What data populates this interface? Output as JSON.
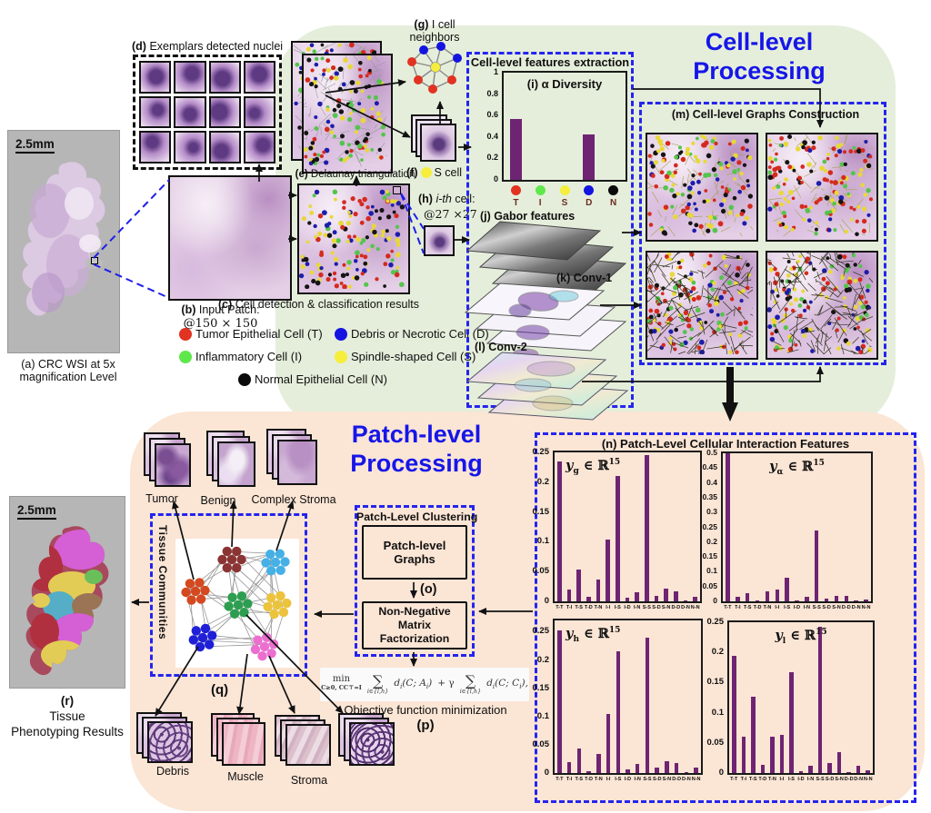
{
  "colors": {
    "accent_blue": "#1616e8",
    "dashed_blue": "#2424ee",
    "bar_purple": "#6e2472",
    "green_bg": "#e5eedb",
    "peach_bg": "#fbe5d5",
    "gray_panel": "#b6b6b6"
  },
  "cell_level": {
    "title_line1": "Cell-level",
    "title_line2": "Processing",
    "panel_a": {
      "scale": "2.5mm",
      "caption_line1": "(a) CRC WSI at 5x",
      "caption_line2": "magnification Level"
    },
    "panel_d": {
      "tag": "(d)",
      "label": "Exemplars detected nuclei"
    },
    "panel_b": {
      "tag": "(b)",
      "label": "Input Patch:",
      "size": "@150 × 150"
    },
    "panel_c": {
      "tag": "(c)",
      "label": "Cell detection & classification results"
    },
    "panel_e": {
      "tag": "(e)",
      "label": "Delaunay triangulation"
    },
    "panel_f": {
      "tag": "(f)",
      "label": "S cell"
    },
    "panel_g": {
      "tag": "(g)",
      "line1": "I cell",
      "line2": "neighbors"
    },
    "panel_h": {
      "tag": "(h)",
      "word_italic": "i-th",
      "word": "cell:",
      "size": "@27 ×27"
    },
    "legend": [
      {
        "label": "Tumor Epithelial Cell (T)",
        "color": "#e23222"
      },
      {
        "label": "Inflammatory Cell (I)",
        "color": "#5fe84c"
      },
      {
        "label": "Normal Epithelial Cell (N)",
        "color": "#0a0a0a"
      },
      {
        "label": "Debris or Necrotic Cell (D)",
        "color": "#1414e0"
      },
      {
        "label": "Spindle-shaped Cell (S)",
        "color": "#f6ee3c"
      }
    ],
    "features_box": {
      "title": "Cell-level features extraction"
    },
    "panel_j": {
      "tag": "(j)",
      "label": "Gabor features"
    },
    "panel_k": {
      "tag": "(k)",
      "label": "Conv-1"
    },
    "panel_l": {
      "tag": "(l)",
      "label": "Conv-2"
    },
    "panel_m": {
      "tag": "(m)",
      "label": "Cell-level Graphs Construction"
    }
  },
  "patch_level": {
    "title_line1": "Patch-level",
    "title_line2": "Processing",
    "panel_n": {
      "title": "(n) Patch-Level Cellular Interaction Features"
    },
    "clustering": {
      "title": "Patch-Level Clustering",
      "box1": "Patch-level Graphs",
      "o_tag": "(o)",
      "box2_line1": "Non-Negative Matrix",
      "box2_line2": "Factorization"
    },
    "panel_p": {
      "caption": "Objective function minimization",
      "tag": "(p)",
      "formula": {
        "min": "min",
        "constraint": "C≥0, CC⊤=I",
        "sum": "∑",
        "sum_sub": "i∈{l,h}",
        "term_a": [
          "d",
          "i",
          "(C; A",
          "i",
          ")"
        ],
        "gamma": "+ γ",
        "term_c": [
          "d",
          "i",
          "(C; C",
          "i",
          "),"
        ]
      }
    },
    "panel_q": {
      "tag": "(q)",
      "vertical_label": "Tissue Communities",
      "cluster_colors": [
        "#8b3434",
        "#45b0e6",
        "#d4491f",
        "#2d9e50",
        "#ecc33c",
        "#1f1fd8",
        "#ec6fd0"
      ]
    },
    "stacks_top": [
      {
        "label": "Tumor"
      },
      {
        "label": "Benign"
      },
      {
        "label": "Complex Stroma"
      }
    ],
    "stacks_bottom": [
      {
        "label": "Debris"
      },
      {
        "label": "Muscle"
      },
      {
        "label": "Stroma"
      }
    ],
    "panel_r": {
      "scale": "2.5mm",
      "tag": "(r)",
      "caption_line1": "Tissue",
      "caption_line2": "Phenotyping Results"
    }
  },
  "chart_data": [
    {
      "id": "chart-i",
      "type": "bar",
      "title": "(i) α Diversity",
      "categories": [
        "T",
        "I",
        "S",
        "D",
        "N"
      ],
      "values": [
        0.57,
        0,
        0,
        0.42,
        0
      ],
      "ylim": [
        0,
        1
      ],
      "yticks": [
        0,
        0.2,
        0.4,
        0.6,
        0.8,
        1
      ],
      "dot_colors": [
        "#e23222",
        "#5fe84c",
        "#f6ee3c",
        "#1414e0",
        "#0a0a0a"
      ],
      "bar_color": "#6e2472",
      "xlabel": "",
      "ylabel": "",
      "legend_position": "none"
    },
    {
      "id": "chart-g",
      "type": "bar",
      "title_sym": "y",
      "title_sub": "g",
      "title_mid": "∈ ℝ",
      "title_sup": "15",
      "categories": [
        "T-T",
        "T-I",
        "T-S",
        "T-D",
        "T-N",
        "I-I",
        "I-S",
        "I-D",
        "I-N",
        "S-S",
        "S-D",
        "S-N",
        "D-D",
        "D-N",
        "N-N"
      ],
      "values": [
        0.235,
        0.02,
        0.053,
        0.008,
        0.037,
        0.103,
        0.21,
        0.006,
        0.015,
        0.245,
        0.009,
        0.022,
        0.017,
        0.002,
        0.008
      ],
      "ylim": [
        0,
        0.25
      ],
      "yticks": [
        0,
        0.05,
        0.1,
        0.15,
        0.2,
        0.25
      ],
      "bar_color": "#6e2472"
    },
    {
      "id": "chart-a",
      "type": "bar",
      "title_sym": "y",
      "title_sub": "α",
      "title_mid": "∈ ℝ",
      "title_sup": "15",
      "categories": [
        "T-T",
        "T-I",
        "T-S",
        "T-D",
        "T-N",
        "I-I",
        "I-S",
        "I-D",
        "I-N",
        "S-S",
        "S-D",
        "S-N",
        "D-D",
        "D-N",
        "N-N"
      ],
      "values": [
        0.5,
        0.015,
        0.027,
        0.002,
        0.033,
        0.04,
        0.08,
        0.002,
        0.015,
        0.24,
        0.01,
        0.018,
        0.018,
        0.003,
        0.007
      ],
      "ylim": [
        0,
        0.5
      ],
      "yticks": [
        0,
        0.05,
        0.1,
        0.15,
        0.2,
        0.25,
        0.3,
        0.35,
        0.4,
        0.45,
        0.5
      ],
      "bar_color": "#6e2472"
    },
    {
      "id": "chart-h",
      "type": "bar",
      "title_sym": "y",
      "title_sub": "h",
      "title_mid": "∈ ℝ",
      "title_sup": "15",
      "categories": [
        "T-T",
        "T-I",
        "T-S",
        "T-D",
        "T-N",
        "I-I",
        "I-S",
        "I-D",
        "I-N",
        "S-S",
        "S-D",
        "S-N",
        "D-D",
        "D-N",
        "N-N"
      ],
      "values": [
        0.253,
        0.02,
        0.043,
        0.004,
        0.033,
        0.105,
        0.215,
        0.007,
        0.016,
        0.24,
        0.009,
        0.021,
        0.018,
        0.002,
        0.009
      ],
      "ylim": [
        0,
        0.27
      ],
      "yticks": [
        0,
        0.05,
        0.1,
        0.15,
        0.2,
        0.25
      ],
      "bar_color": "#6e2472"
    },
    {
      "id": "chart-l",
      "type": "bar",
      "title_sym": "y",
      "title_sub": "l",
      "title_mid": "∈ ℝ",
      "title_sup": "15",
      "categories": [
        "T-T",
        "T-I",
        "T-S",
        "T-D",
        "T-N",
        "I-I",
        "I-S",
        "I-D",
        "I-N",
        "S-S",
        "S-D",
        "S-N",
        "D-D",
        "D-N",
        "N-N"
      ],
      "values": [
        0.195,
        0.06,
        0.127,
        0.013,
        0.06,
        0.064,
        0.167,
        0.003,
        0.012,
        0.243,
        0.016,
        0.034,
        0.001,
        0.012,
        0.005
      ],
      "ylim": [
        0,
        0.25
      ],
      "yticks": [
        0,
        0.05,
        0.1,
        0.15,
        0.2,
        0.25
      ],
      "bar_color": "#6e2472"
    }
  ]
}
